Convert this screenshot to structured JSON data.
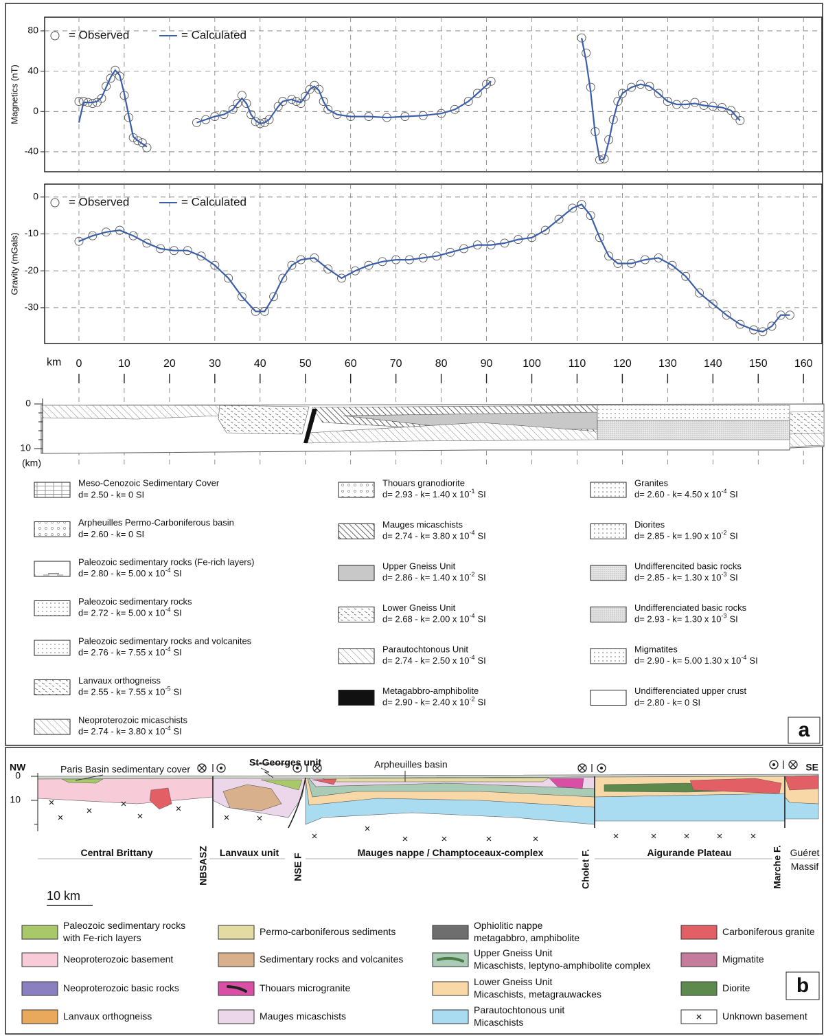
{
  "chart_data": [
    {
      "type": "line",
      "y_label": "Magnetics (nT)",
      "x": [
        0,
        1,
        2,
        3,
        4,
        5,
        6,
        7,
        8,
        9,
        10,
        11,
        12,
        13,
        14,
        15,
        20,
        26,
        28,
        30,
        32,
        34,
        35,
        36,
        37,
        38,
        39,
        40,
        41,
        42,
        44,
        45,
        47,
        48,
        49,
        50,
        51,
        52,
        53,
        54,
        55,
        57,
        60,
        64,
        68,
        72,
        76,
        80,
        83,
        86,
        88,
        90,
        91,
        100,
        111,
        112,
        113,
        114,
        115,
        116,
        117,
        118,
        119,
        120,
        122,
        124,
        126,
        128,
        130,
        132,
        134,
        136,
        138,
        140,
        142,
        144,
        145,
        146
      ],
      "series": [
        {
          "name": "= Observed",
          "color": "#555555",
          "values": [
            10,
            10,
            9,
            8,
            9,
            13,
            25,
            33,
            41,
            35,
            16,
            -6,
            -26,
            -29,
            -31,
            -36,
            null,
            -11,
            -8,
            -5,
            -3,
            2,
            8,
            16,
            8,
            -3,
            -10,
            -12,
            -11,
            -8,
            5,
            10,
            12,
            10,
            8,
            15,
            22,
            26,
            22,
            10,
            2,
            -3,
            -5,
            -5,
            -6,
            -5,
            -4,
            -2,
            2,
            10,
            18,
            27,
            30,
            null,
            73,
            58,
            24,
            -20,
            -48,
            -47,
            -28,
            -8,
            10,
            18,
            24,
            27,
            25,
            18,
            10,
            7,
            7,
            9,
            6,
            5,
            4,
            1,
            -4,
            -9
          ]
        },
        {
          "name": "= Calculated",
          "color": "#3a5ea8",
          "values": [
            -11,
            9,
            9,
            9,
            10,
            14,
            24,
            34,
            41,
            36,
            18,
            -4,
            -25,
            -29,
            -32,
            -35,
            null,
            -11,
            -8,
            -5,
            -3,
            2,
            8,
            13,
            8,
            -3,
            -9,
            -12,
            -11,
            -8,
            5,
            10,
            12,
            10,
            9,
            15,
            22,
            25,
            21,
            10,
            2,
            -3,
            -5,
            -5,
            -6,
            -5,
            -4,
            -2,
            2,
            10,
            18,
            26,
            30,
            null,
            73,
            50,
            20,
            -22,
            -48,
            -47,
            -30,
            -8,
            9,
            18,
            24,
            27,
            25,
            18,
            10,
            7,
            7,
            8,
            6,
            5,
            4,
            1,
            -4,
            -9
          ]
        }
      ],
      "xlim": [
        -7.58,
        164.06
      ],
      "xticks": [
        0,
        10,
        20,
        30,
        40,
        50,
        60,
        70,
        80,
        90,
        100,
        110,
        120,
        130,
        140,
        150,
        160
      ],
      "ylim": [
        -59.8,
        93.6
      ],
      "yticks": [
        -40,
        0,
        40,
        80
      ],
      "grid": true,
      "marker": "circle"
    },
    {
      "type": "line",
      "y_label": "Gravity (mGals)",
      "x_label": "km",
      "x": [
        0,
        3,
        6,
        9,
        12,
        15,
        18,
        21,
        24,
        27,
        30,
        33,
        36,
        39,
        41,
        43,
        45,
        47,
        49,
        52,
        55,
        58,
        61,
        64,
        67,
        70,
        73,
        76,
        79,
        82,
        85,
        88,
        91,
        94,
        97,
        100,
        103,
        106,
        109,
        111,
        113,
        115,
        117,
        119,
        122,
        125,
        128,
        131,
        134,
        137,
        140,
        143,
        146,
        149,
        151,
        153,
        155,
        157
      ],
      "series": [
        {
          "name": "= Observed",
          "color": "#555555",
          "values": [
            -12,
            -10.5,
            -9.5,
            -9,
            -10.5,
            -12.5,
            -14,
            -14.5,
            -14.5,
            -16,
            -18.5,
            -22,
            -27,
            -31,
            -31,
            -27,
            -22,
            -18.5,
            -17,
            -16.5,
            -19.5,
            -22,
            -20,
            -18.5,
            -17.5,
            -17,
            -17,
            -16.5,
            -16,
            -15,
            -14,
            -13,
            -13,
            -12.5,
            -11.5,
            -11,
            -9,
            -6,
            -3,
            -2,
            -5,
            -11,
            -16,
            -18,
            -18,
            -17,
            -16.5,
            -18.5,
            -21.5,
            -26,
            -29,
            -32,
            -34.5,
            -36,
            -36.5,
            -35,
            -32,
            -32
          ]
        },
        {
          "name": "= Calculated",
          "color": "#3a5ea8",
          "values": [
            -12,
            -10.5,
            -9.5,
            -9,
            -10.5,
            -12.5,
            -14,
            -14.5,
            -14.5,
            -16,
            -18.5,
            -22,
            -27,
            -31,
            -31,
            -27,
            -22,
            -18.5,
            -17,
            -16.5,
            -19.5,
            -22,
            -20,
            -18.5,
            -17.5,
            -17,
            -17,
            -16.5,
            -16,
            -15,
            -14,
            -13,
            -13,
            -12.5,
            -11.5,
            -11,
            -9,
            -6,
            -3,
            -2,
            -5,
            -11,
            -16,
            -18,
            -18,
            -17,
            -16.5,
            -18.5,
            -21.5,
            -26,
            -29,
            -32,
            -34.5,
            -36,
            -36.5,
            -35,
            -32,
            -32
          ]
        }
      ],
      "xlim": [
        -7.58,
        164.06
      ],
      "xticks": [
        0,
        10,
        20,
        30,
        40,
        50,
        60,
        70,
        80,
        90,
        100,
        110,
        120,
        130,
        140,
        150,
        160
      ],
      "ylim": [
        -39.7,
        3.5
      ],
      "yticks": [
        -30,
        -20,
        -10,
        0
      ],
      "grid": true,
      "marker": "circle"
    }
  ],
  "cross_section_a": {
    "depth_ticks": [
      0,
      10
    ],
    "depth_unit": "(km)"
  },
  "legend_a": [
    {
      "name": "Meso-Cenozoic Sedimentary Cover",
      "props": "d= 2.50 - k= 0 SI",
      "swatch": "brick"
    },
    {
      "name": "Arpheuilles Permo-Carboniferous basin",
      "props": "d= 2.60 - k= 0 SI",
      "swatch": "ring"
    },
    {
      "name": "Paleozoic sedimentary rocks (Fe-rich layers)",
      "props": [
        "d= 2.80 - k= 5.00 x 10",
        "-4",
        "SI"
      ],
      "swatch": "fe"
    },
    {
      "name": "Paleozoic sedimentary rocks",
      "props": [
        "d= 2.72 - k= 5.00 x 10",
        "-4",
        "SI"
      ],
      "swatch": "dot"
    },
    {
      "name": "Paleozoic sedimentary rocks and volcanites",
      "props": [
        "d= 2.76 - k= 7.55 x 10",
        "-4",
        "SI"
      ],
      "swatch": "dot"
    },
    {
      "name": "Lanvaux orthogneiss",
      "props": [
        "d= 2.55 - k= 7.55 x 10",
        "-5",
        "SI"
      ],
      "swatch": "dash"
    },
    {
      "name": "Neoproterozoic micaschists",
      "props": [
        "d= 2.74 - k= 3.80 x 10",
        "-4",
        "SI"
      ],
      "swatch": "hatch"
    },
    {
      "name": "Thouars granodiorite",
      "props": [
        "d= 2.93 - k= 1.40 x 10",
        "-1",
        "SI"
      ],
      "swatch": "ring"
    },
    {
      "name": "Mauges micaschists",
      "props": [
        "d= 2.74 - k= 3.80 x 10",
        "-4",
        "SI"
      ],
      "swatch": "hatchbold"
    },
    {
      "name": "Upper Gneiss Unit",
      "props": [
        "d= 2.86 - k= 1.40 x 10",
        "-2",
        "SI"
      ],
      "swatch": "gray"
    },
    {
      "name": "Lower Gneiss Unit",
      "props": [
        "d= 2.68 - k= 2.00 x 10",
        "-4",
        "SI"
      ],
      "swatch": "dash"
    },
    {
      "name": "Parautochtonous Unit",
      "props": [
        "d= 2.74 - k= 2.50 x 10",
        "-4",
        "SI"
      ],
      "swatch": "hatch"
    },
    {
      "name": "Metagabbro-amphibolite",
      "props": [
        "d= 2.90 - k= 2.40 x 10",
        "-2",
        "SI"
      ],
      "swatch": "black"
    },
    {
      "name": "Granites",
      "props": [
        "d= 2.60 - k= 4.50 x 10",
        "-4",
        "SI"
      ],
      "swatch": "dot"
    },
    {
      "name": "Diorites",
      "props": [
        "d= 2.85 - k= 1.90 x 10",
        "-2",
        "SI"
      ],
      "swatch": "dot"
    },
    {
      "name": "Undifferencited basic rocks",
      "props": [
        "d= 2.85 - k= 1.30 x 10",
        "-3",
        "SI"
      ],
      "swatch": "fine"
    },
    {
      "name": "Undifferenciated basic rocks",
      "props": [
        "d= 2.93 - k= 1.30 x 10",
        "-3",
        "SI"
      ],
      "swatch": "fine"
    },
    {
      "name": "Migmatites",
      "props": [
        "d= 2.90 - k= 5.00 1.30 x 10",
        "-4",
        "SI"
      ],
      "swatch": "dot"
    },
    {
      "name": "Undifferenciated upper crust",
      "props": "d= 2.80 - k= 0 SI",
      "swatch": "blank"
    }
  ],
  "panel_a_label": "a",
  "cross_section_b": {
    "ends": [
      "NW",
      "SE"
    ],
    "annotations": [
      "Paris Basin sedimentary cover",
      "St-Georges unit",
      "Arpheuilles basin"
    ],
    "depth_ticks": [
      0,
      10
    ],
    "faults": [
      "NBSASZ",
      "NSE F",
      "Cholet F.",
      "Marche F."
    ],
    "units": [
      [
        "Central Brittany"
      ],
      [
        "Lanvaux unit"
      ],
      [
        "Mauges nappe / Champtoceaux-complex"
      ],
      [
        "Aigurande Plateau"
      ],
      [
        "Guéret",
        "Massif"
      ]
    ],
    "scale": "10 km"
  },
  "legend_b": [
    {
      "name": [
        "Paleozoic sedimentary rocks",
        "with Fe-rich layers"
      ],
      "color": "#a9c86a"
    },
    {
      "name": [
        "Neoproterozoic basement"
      ],
      "color": "#f8cbd9"
    },
    {
      "name": [
        "Neoproterozoic basic rocks"
      ],
      "color": "#8a7fbf"
    },
    {
      "name": [
        "Lanvaux orthogneiss"
      ],
      "color": "#e8a95c"
    },
    {
      "name": [
        "Permo-carboniferous sediments"
      ],
      "color": "#e4dba2"
    },
    {
      "name": [
        "Sedimentary rocks and volcanites"
      ],
      "color": "#d9b08c"
    },
    {
      "name": [
        "Thouars microgranite"
      ],
      "color": "#d94fa6"
    },
    {
      "name": [
        "Mauges micaschists"
      ],
      "color": "#ecd7ea"
    },
    {
      "name": [
        "Ophiolitic nappe",
        "metagabbro, amphibolite"
      ],
      "color": "#6e6e6e"
    },
    {
      "name": [
        "Upper Gneiss Unit",
        "Micaschists, leptyno-amphibolite complex"
      ],
      "color": "#aacbb5"
    },
    {
      "name": [
        "Lower Gneiss Unit",
        "Micaschists, metagrauwackes"
      ],
      "color": "#f9d8a7"
    },
    {
      "name": [
        "Parautochtonous unit",
        "Micaschists"
      ],
      "color": "#a9dcf0"
    },
    {
      "name": [
        "Carboniferous granite"
      ],
      "color": "#e35f66"
    },
    {
      "name": [
        "Migmatite"
      ],
      "color": "#c57b9c"
    },
    {
      "name": [
        "Diorite"
      ],
      "color": "#5d8a4c"
    },
    {
      "name": [
        "Unknown basement"
      ],
      "color": "#ffffff"
    }
  ],
  "panel_b_label": "b"
}
